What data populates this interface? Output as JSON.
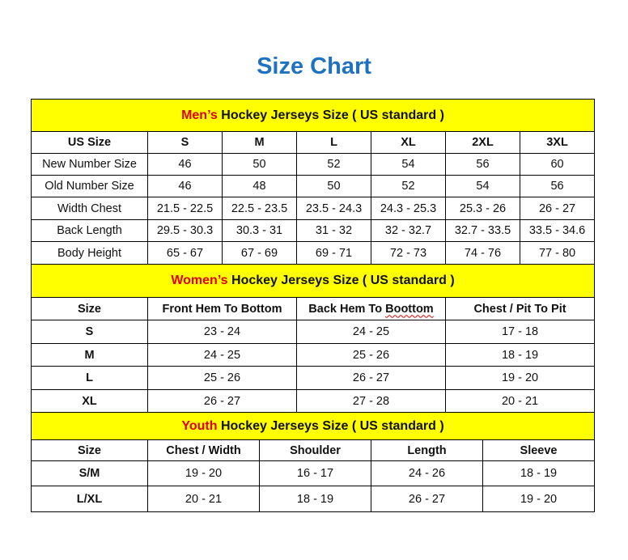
{
  "title": "Size Chart",
  "men": {
    "prefix": "Men’s",
    "suffix": " Hockey Jerseys Size ( US standard )",
    "columns": [
      "US Size",
      "S",
      "M",
      "L",
      "XL",
      "2XL",
      "3XL"
    ],
    "rows": [
      [
        "New Number Size",
        "46",
        "50",
        "52",
        "54",
        "56",
        "60"
      ],
      [
        "Old Number Size",
        "46",
        "48",
        "50",
        "52",
        "54",
        "56"
      ],
      [
        "Width Chest",
        "21.5 - 22.5",
        "22.5 - 23.5",
        "23.5 - 24.3",
        "24.3 - 25.3",
        "25.3 - 26",
        "26 - 27"
      ],
      [
        "Back Length",
        "29.5 - 30.3",
        "30.3 - 31",
        "31 - 32",
        "32 - 32.7",
        "32.7 - 33.5",
        "33.5 - 34.6"
      ],
      [
        "Body Height",
        "65 - 67",
        "67 - 69",
        "69 - 71",
        "72 - 73",
        "74 - 76",
        "77 - 80"
      ]
    ]
  },
  "women": {
    "prefix": "Women’s",
    "suffix": " Hockey Jerseys Size ( US standard )",
    "columns": [
      "Size",
      "Front Hem To Bottom",
      "Back Hem To Boottom",
      "Chest / Pit To Pit"
    ],
    "rows": [
      [
        "S",
        "23 - 24",
        "24 - 25",
        "17 - 18"
      ],
      [
        "M",
        "24 - 25",
        "25 - 26",
        "18 - 19"
      ],
      [
        "L",
        "25 - 26",
        "26 - 27",
        "19 - 20"
      ],
      [
        "XL",
        "26 - 27",
        "27 - 28",
        "20 - 21"
      ]
    ]
  },
  "youth": {
    "prefix": "Youth",
    "suffix": " Hockey Jerseys Size ( US standard )",
    "columns": [
      "Size",
      "Chest / Width",
      "Shoulder",
      "Length",
      "Sleeve"
    ],
    "rows": [
      [
        "S/M",
        "19 - 20",
        "16 - 17",
        "24 - 26",
        "18 - 19"
      ],
      [
        "L/XL",
        "20 - 21",
        "18 - 19",
        "26 - 27",
        "19 - 20"
      ]
    ]
  },
  "colors": {
    "title": "#1f72c0",
    "header_bg": "#ffff00",
    "accent_red": "#e00000"
  }
}
